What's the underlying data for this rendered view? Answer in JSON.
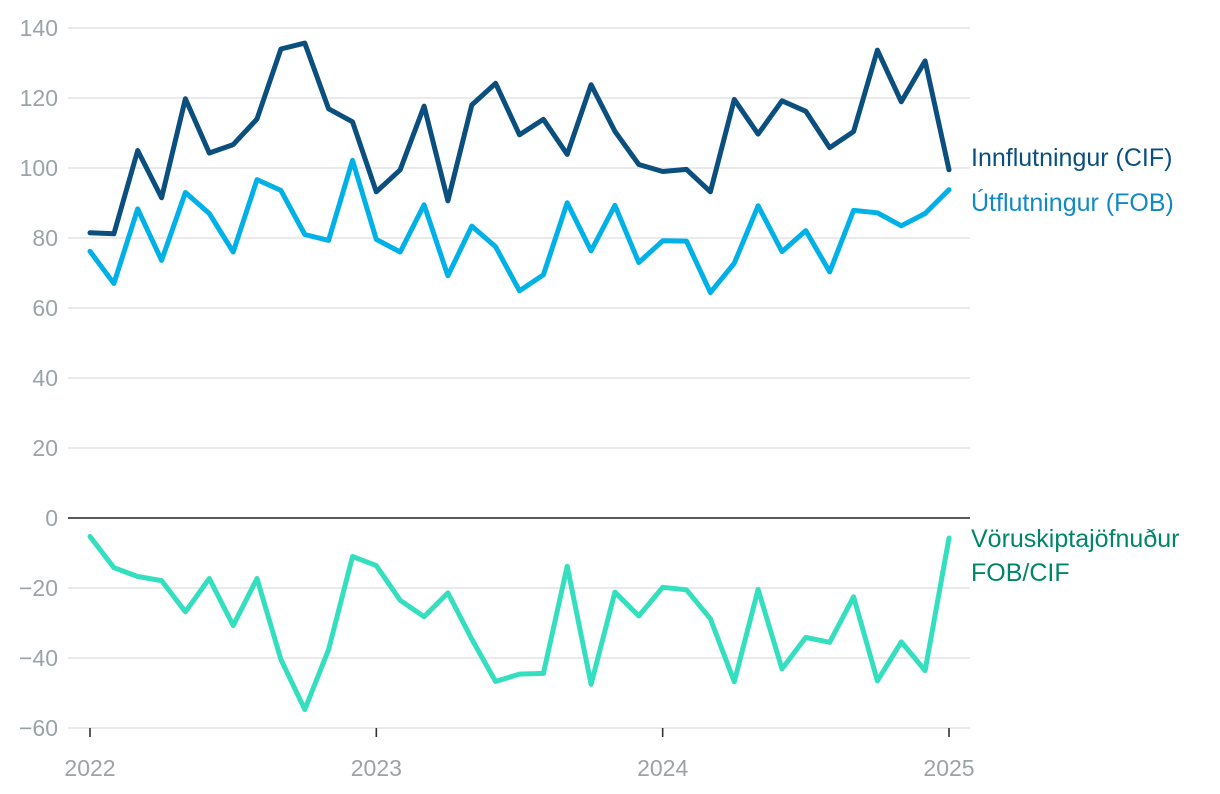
{
  "chart_data": {
    "type": "line",
    "title": "",
    "xlabel": "",
    "ylabel": "",
    "ylim": [
      -60,
      140
    ],
    "yticks": [
      -60,
      -40,
      -20,
      0,
      20,
      40,
      60,
      80,
      100,
      120,
      140
    ],
    "ytick_labels": [
      "−60",
      "−40",
      "−20",
      "0",
      "20",
      "40",
      "60",
      "80",
      "100",
      "120",
      "140"
    ],
    "xlim": [
      0,
      36
    ],
    "xticks": [
      0,
      12,
      24,
      36
    ],
    "xtick_labels": [
      "2022",
      "2023",
      "2024",
      "2025"
    ],
    "x": [
      0,
      1,
      2,
      3,
      4,
      5,
      6,
      7,
      8,
      9,
      10,
      11,
      12,
      13,
      14,
      15,
      16,
      17,
      18,
      19,
      20,
      21,
      22,
      23,
      24,
      25,
      26,
      27,
      28,
      29,
      30,
      31,
      32,
      33,
      34,
      35,
      36
    ],
    "grid": true,
    "series": [
      {
        "name": "Innflutningur (CIF)",
        "label_lines": [
          "Innflutningur (CIF)"
        ],
        "color": "#0a4f7e",
        "label_color": "#0a4f7e",
        "values": [
          81.5,
          81.2,
          105,
          91.5,
          119.8,
          104.3,
          106.7,
          114,
          134,
          135.7,
          116.9,
          113.2,
          93.2,
          99.5,
          117.7,
          90.6,
          118,
          124.2,
          109.5,
          113.9,
          103.9,
          123.8,
          110.5,
          101,
          99,
          99.6,
          93.2,
          119.6,
          109.7,
          119.2,
          116.2,
          105.8,
          110.4,
          133.7,
          118.9,
          130.6,
          99.5
        ]
      },
      {
        "name": "Útflutningur (FOB)",
        "label_lines": [
          "Útflutningur (FOB)"
        ],
        "color": "#00b1e8",
        "label_color": "#1189c4",
        "values": [
          76.2,
          67,
          88.3,
          73.6,
          93,
          87,
          76,
          96.7,
          93.6,
          81,
          79.3,
          102.2,
          79.6,
          76,
          89.5,
          69.2,
          83.4,
          77.5,
          64.9,
          69.5,
          90.1,
          76.3,
          89.3,
          73,
          79.2,
          79.1,
          64.4,
          72.8,
          89.2,
          76.1,
          82.1,
          70.3,
          87.9,
          87.2,
          83.5,
          87,
          93.8
        ]
      },
      {
        "name": "Vöruskiptajöfnuður FOB/CIF",
        "label_lines": [
          "Vöruskiptajöfnuður",
          "FOB/CIF"
        ],
        "color": "#33dfbe",
        "label_color": "#00856b",
        "values": [
          -5.3,
          -14.2,
          -16.7,
          -17.9,
          -26.8,
          -17.3,
          -30.7,
          -17.3,
          -40.4,
          -54.7,
          -37.6,
          -11.0,
          -13.6,
          -23.5,
          -28.2,
          -21.4,
          -34.6,
          -46.7,
          -44.6,
          -44.4,
          -13.8,
          -47.5,
          -21.2,
          -28.0,
          -19.8,
          -20.5,
          -28.8,
          -46.8,
          -20.4,
          -43.1,
          -34.1,
          -35.5,
          -22.5,
          -46.5,
          -35.4,
          -43.6,
          -5.7
        ]
      }
    ]
  }
}
